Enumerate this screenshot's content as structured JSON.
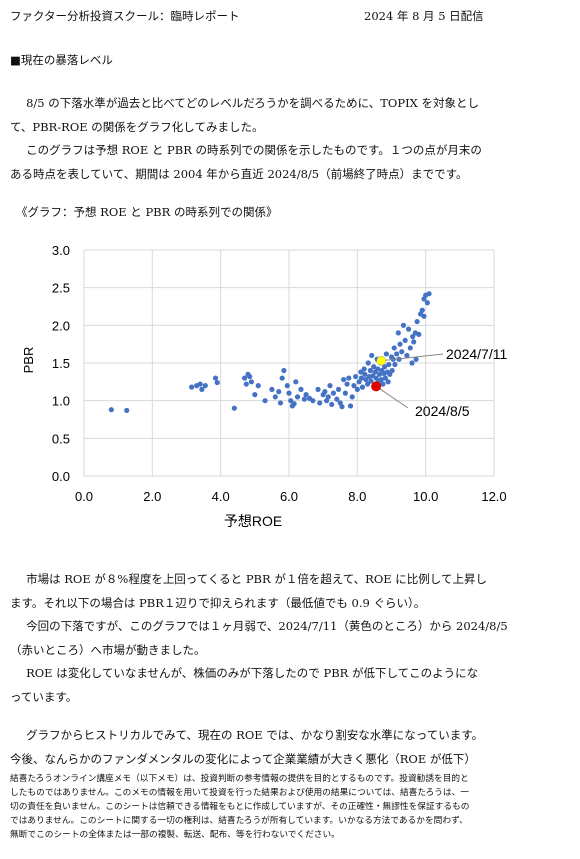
{
  "header": {
    "left": "ファクター分析投資スクール：臨時レポート",
    "right": "2024 年 8 月 5 日配信"
  },
  "section_title": "■現在の暴落レベル",
  "intro": [
    "8/5 の下落水準が過去と比べてどのレベルだろうかを調べるために、TOPIX を対象とし",
    "て、PBR-ROE の関係をグラフ化してみました。",
    "このグラフは予想 ROE と PBR の時系列での関係を示したものです。１つの点が月末の",
    "ある時点を表していて、期間は 2004 年から直近 2024/8/5（前場終了時点）までです。"
  ],
  "figure_caption": "《グラフ：予想 ROE と PBR の時系列での関係》",
  "body": [
    "市場は ROE が８%程度を上回ってくると PBR が１倍を超えて、ROE に比例して上昇し",
    "ます。それ以下の場合は PBR１辺りで抑えられます（最低値でも 0.9 ぐらい）。",
    "今回の下落ですが、このグラフでは１ヶ月弱で、2024/7/11（黄色のところ）から 2024/8/5",
    "（赤いところ）へ市場が動きました。",
    "ROE は変化していなませんが、株価のみが下落したので PBR が低下してこのようにな",
    "っています。",
    "グラフからヒストリカルでみて、現在の ROE では、かなり割安な水準になっています。",
    "今後、なんらかのファンダメンタルの変化によって企業業績が大きく悪化（ROE が低下）"
  ],
  "footer": [
    "結喜たろうオンライン講座メモ（以下メモ）は、投資判断の参考情報の提供を目的とするものです。投資勧誘を目的と",
    "したものではありません。このメモの情報を用いて投資を行った結果および使用の結果については、結喜たろうは、一",
    "切の責任を負いません。このシートは信頼できる情報をもとに作成していますが、その正確性・無謬性を保証するもの",
    "ではありません。このシートに関する一切の権利は、結喜たろうが所有しています。いかなる方法であるかを問わず、",
    "無断でこのシートの全体または一部の複製、転送、配布、等を行わないでください。"
  ],
  "chart_data": {
    "type": "scatter",
    "xlabel": "予想ROE",
    "ylabel": "PBR",
    "xlim": [
      0,
      12
    ],
    "ylim": [
      0,
      3
    ],
    "x_ticks": [
      "0.0",
      "2.0",
      "4.0",
      "6.0",
      "8.0",
      "10.0",
      "12.0"
    ],
    "y_ticks": [
      "0.0",
      "0.5",
      "1.0",
      "1.5",
      "2.0",
      "2.5",
      "3.0"
    ],
    "grid": true,
    "colors": {
      "points": "#4472c4",
      "highlight_july": "#ffff00",
      "highlight_aug": "#e00000"
    },
    "series": [
      {
        "points": [
          [
            0.8,
            0.88
          ],
          [
            1.25,
            0.87
          ],
          [
            3.15,
            1.18
          ],
          [
            3.3,
            1.2
          ],
          [
            3.4,
            1.22
          ],
          [
            3.45,
            1.15
          ],
          [
            3.55,
            1.2
          ],
          [
            3.85,
            1.3
          ],
          [
            3.9,
            1.24
          ],
          [
            4.4,
            0.9
          ],
          [
            4.7,
            1.3
          ],
          [
            4.8,
            1.35
          ],
          [
            4.85,
            1.32
          ],
          [
            4.9,
            1.25
          ],
          [
            4.75,
            1.22
          ],
          [
            5.0,
            1.08
          ],
          [
            5.1,
            1.2
          ],
          [
            5.3,
            1.0
          ],
          [
            5.5,
            1.15
          ],
          [
            5.6,
            1.05
          ],
          [
            5.7,
            1.12
          ],
          [
            5.75,
            0.97
          ],
          [
            5.8,
            1.3
          ],
          [
            5.85,
            1.4
          ],
          [
            5.95,
            1.2
          ],
          [
            6.0,
            1.1
          ],
          [
            6.05,
            1.0
          ],
          [
            6.1,
            0.93
          ],
          [
            6.15,
            0.96
          ],
          [
            6.2,
            1.25
          ],
          [
            6.25,
            1.05
          ],
          [
            6.35,
            1.15
          ],
          [
            6.45,
            1.02
          ],
          [
            6.5,
            1.08
          ],
          [
            6.6,
            1.03
          ],
          [
            6.7,
            1.0
          ],
          [
            6.85,
            1.15
          ],
          [
            6.9,
            0.97
          ],
          [
            7.0,
            1.08
          ],
          [
            7.05,
            1.12
          ],
          [
            7.1,
            1.0
          ],
          [
            7.15,
            1.05
          ],
          [
            7.2,
            1.2
          ],
          [
            7.25,
            0.95
          ],
          [
            7.3,
            1.1
          ],
          [
            7.4,
            1.02
          ],
          [
            7.45,
            1.15
          ],
          [
            7.5,
            0.97
          ],
          [
            7.55,
            0.92
          ],
          [
            7.6,
            1.28
          ],
          [
            7.65,
            1.1
          ],
          [
            7.7,
            1.22
          ],
          [
            7.75,
            1.3
          ],
          [
            7.8,
            0.93
          ],
          [
            7.85,
            1.05
          ],
          [
            7.9,
            1.2
          ],
          [
            7.95,
            1.32
          ],
          [
            8.0,
            1.15
          ],
          [
            8.05,
            1.25
          ],
          [
            8.1,
            1.38
          ],
          [
            8.12,
            1.3
          ],
          [
            8.15,
            1.18
          ],
          [
            8.2,
            1.42
          ],
          [
            8.22,
            1.35
          ],
          [
            8.25,
            1.28
          ],
          [
            8.3,
            1.22
          ],
          [
            8.32,
            1.5
          ],
          [
            8.35,
            1.32
          ],
          [
            8.38,
            1.4
          ],
          [
            8.4,
            1.26
          ],
          [
            8.42,
            1.6
          ],
          [
            8.45,
            1.33
          ],
          [
            8.48,
            1.45
          ],
          [
            8.5,
            1.2
          ],
          [
            8.52,
            1.38
          ],
          [
            8.55,
            1.3
          ],
          [
            8.58,
            1.55
          ],
          [
            8.6,
            1.42
          ],
          [
            8.62,
            1.25
          ],
          [
            8.65,
            1.35
          ],
          [
            8.68,
            1.5
          ],
          [
            8.7,
            1.28
          ],
          [
            8.72,
            1.4
          ],
          [
            8.75,
            1.22
          ],
          [
            8.78,
            1.36
          ],
          [
            8.8,
            1.45
          ],
          [
            8.82,
            1.3
          ],
          [
            8.85,
            1.62
          ],
          [
            8.88,
            1.38
          ],
          [
            8.9,
            1.25
          ],
          [
            8.92,
            1.48
          ],
          [
            8.95,
            1.35
          ],
          [
            9.0,
            1.58
          ],
          [
            9.02,
            1.4
          ],
          [
            9.05,
            1.55
          ],
          [
            9.08,
            1.7
          ],
          [
            9.1,
            1.48
          ],
          [
            9.15,
            1.62
          ],
          [
            9.2,
            1.9
          ],
          [
            9.22,
            1.55
          ],
          [
            9.25,
            1.75
          ],
          [
            9.3,
            1.65
          ],
          [
            9.35,
            2.0
          ],
          [
            9.4,
            1.8
          ],
          [
            9.45,
            1.6
          ],
          [
            9.5,
            1.95
          ],
          [
            9.55,
            1.7
          ],
          [
            9.6,
            1.5
          ],
          [
            9.62,
            1.85
          ],
          [
            9.65,
            1.78
          ],
          [
            9.7,
            1.9
          ],
          [
            9.72,
            1.55
          ],
          [
            9.75,
            2.05
          ],
          [
            9.8,
            1.88
          ],
          [
            9.85,
            2.15
          ],
          [
            9.9,
            2.2
          ],
          [
            9.95,
            2.35
          ],
          [
            10.0,
            2.4
          ],
          [
            10.05,
            2.3
          ],
          [
            10.1,
            2.42
          ],
          [
            9.95,
            2.12
          ]
        ]
      }
    ],
    "highlights": [
      {
        "label": "2024/7/11",
        "x": 8.7,
        "y": 1.53
      },
      {
        "label": "2024/8/5",
        "x": 8.55,
        "y": 1.19
      }
    ]
  }
}
